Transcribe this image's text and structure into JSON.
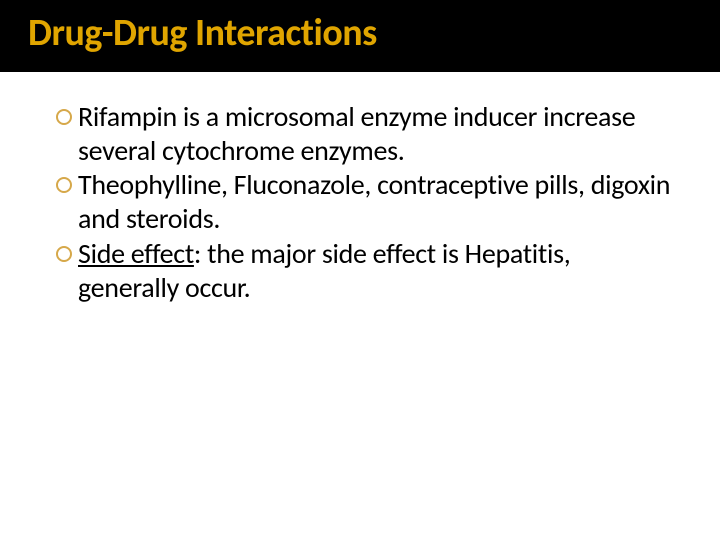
{
  "slide": {
    "title": "Drug-Drug Interactions",
    "title_color": "#e0a500",
    "title_bg": "#000000",
    "title_fontsize": 38,
    "bullet_marker_color": "#d6a84a",
    "body_fontsize": 28,
    "body_color": "#000000",
    "bullets": [
      {
        "text_pre": "Rifampin is a microsomal enzyme inducer increase several cytochrome enzymes.",
        "underline": "",
        "text_post": ""
      },
      {
        "text_pre": "Theophylline, Fluconazole, contraceptive pills, digoxin and steroids.",
        "underline": "",
        "text_post": ""
      },
      {
        "text_pre": "",
        "underline": "Side effect",
        "text_post": ": the major side effect is Hepatitis, generally occur."
      }
    ]
  }
}
